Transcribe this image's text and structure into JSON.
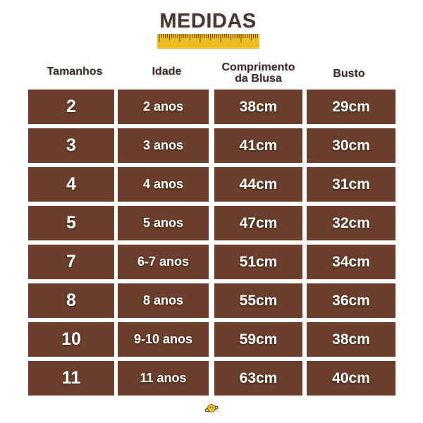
{
  "title": "MEDIDAS",
  "colors": {
    "cell": "#6b3f2b",
    "title": "#4a3733",
    "ruler": "#efbb22"
  },
  "headers": [
    "Tamanhos",
    "Idade",
    "Comprimento da Blusa",
    "Busto"
  ],
  "rows": [
    [
      "2",
      "2 anos",
      "38cm",
      "29cm"
    ],
    [
      "3",
      "3 anos",
      "41cm",
      "30cm"
    ],
    [
      "4",
      "4 anos",
      "44cm",
      "31cm"
    ],
    [
      "5",
      "5 anos",
      "47cm",
      "32cm"
    ],
    [
      "7",
      "6-7 anos",
      "51cm",
      "34cm"
    ],
    [
      "8",
      "8 anos",
      "55cm",
      "36cm"
    ],
    [
      "10",
      "9-10 anos",
      "59cm",
      "38cm"
    ],
    [
      "11",
      "11 anos",
      "63cm",
      "40cm"
    ]
  ],
  "logo_icon": "planet-icon"
}
